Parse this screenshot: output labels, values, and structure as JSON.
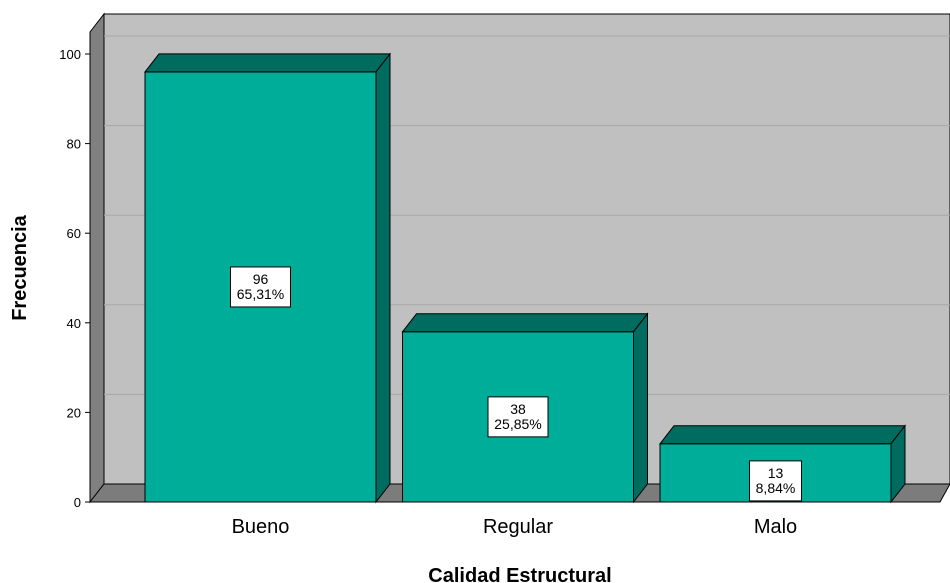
{
  "chart_data": {
    "type": "bar",
    "categories": [
      "Bueno",
      "Regular",
      "Malo"
    ],
    "values": [
      96,
      38,
      13
    ],
    "percent_labels": [
      "65,31%",
      "25,85%",
      "8,84%"
    ],
    "xlabel": "Calidad Estructural",
    "ylabel": "Frecuencia",
    "ylim": [
      0,
      100
    ],
    "yticks": [
      0,
      20,
      40,
      60,
      80,
      100
    ],
    "grid": true,
    "style": "3d"
  },
  "colors": {
    "bar_front": "#00ad99",
    "bar_top": "#006b5f",
    "bar_side": "#006b5f",
    "plot_bg": "#c0c0c0",
    "wall_side": "#808080",
    "floor": "#7c7c7c",
    "grid": "#a8a8a8"
  }
}
